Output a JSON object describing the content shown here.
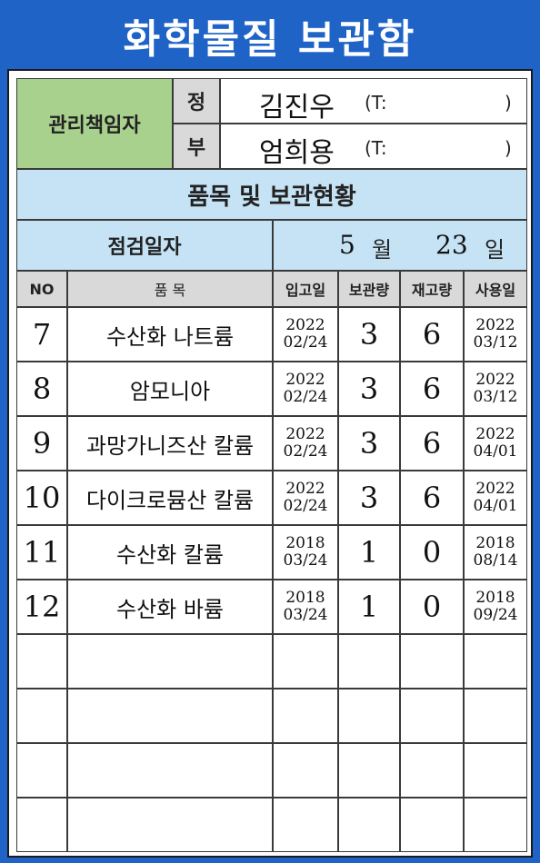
{
  "title": "화학물질 보관함",
  "manager": {
    "label": "관리책임자",
    "primary": {
      "role": "정",
      "name": "김진우",
      "tel_label": "(T:",
      "tel_close": ")"
    },
    "secondary": {
      "role": "부",
      "name": "엄희용",
      "tel_label": "(T:",
      "tel_close": ")"
    }
  },
  "section_title": "품목 및 보관현황",
  "inspection": {
    "label": "점검일자",
    "month": "5",
    "month_unit": "월",
    "day": "23",
    "day_unit": "일"
  },
  "table": {
    "headers": [
      "NO",
      "품 목",
      "입고일",
      "보관량",
      "재고량",
      "사용일"
    ],
    "rows": [
      {
        "no": "7",
        "item": "수산화 나트륨",
        "in_year": "2022",
        "in_date": "02/24",
        "stored": "3",
        "stock": "6",
        "use_year": "2022",
        "use_date": "03/12"
      },
      {
        "no": "8",
        "item": "암모니아",
        "in_year": "2022",
        "in_date": "02/24",
        "stored": "3",
        "stock": "6",
        "use_year": "2022",
        "use_date": "03/12"
      },
      {
        "no": "9",
        "item": "과망가니즈산 칼륨",
        "in_year": "2022",
        "in_date": "02/24",
        "stored": "3",
        "stock": "6",
        "use_year": "2022",
        "use_date": "04/01"
      },
      {
        "no": "10",
        "item": "다이크로뮴산 칼륨",
        "in_year": "2022",
        "in_date": "02/24",
        "stored": "3",
        "stock": "6",
        "use_year": "2022",
        "use_date": "04/01"
      },
      {
        "no": "11",
        "item": "수산화 칼륨",
        "in_year": "2018",
        "in_date": "03/24",
        "stored": "1",
        "stock": "0",
        "use_year": "2018",
        "use_date": "08/14"
      },
      {
        "no": "12",
        "item": "수산화 바륨",
        "in_year": "2018",
        "in_date": "03/24",
        "stored": "1",
        "stock": "0",
        "use_year": "2018",
        "use_date": "09/24"
      }
    ]
  }
}
